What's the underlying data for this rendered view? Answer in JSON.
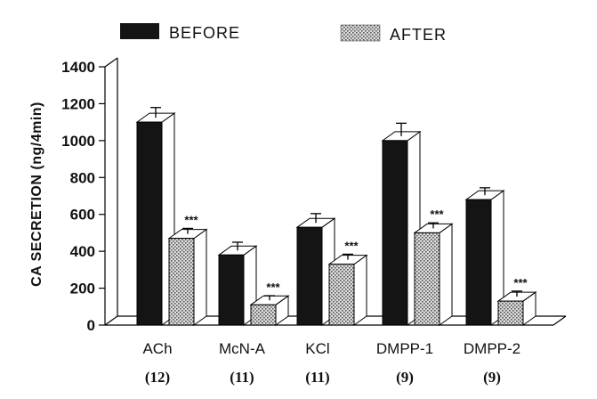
{
  "chart_data": {
    "type": "bar",
    "ylabel": "CA SECRETION (ng/4min)",
    "ylim": [
      0,
      1400
    ],
    "yticks": [
      0,
      200,
      400,
      600,
      800,
      1000,
      1200,
      1400
    ],
    "categories": [
      "ACh",
      "McN-A",
      "KCl",
      "DMPP-1",
      "DMPP-2"
    ],
    "counts": [
      "(12)",
      "(11)",
      "(11)",
      "(9)",
      "(9)"
    ],
    "series": [
      {
        "name": "BEFORE",
        "pattern": "solid-black",
        "values": [
          1100,
          380,
          530,
          1000,
          680
        ],
        "errors": [
          55,
          45,
          50,
          70,
          40
        ]
      },
      {
        "name": "AFTER",
        "pattern": "crosshatch",
        "values": [
          470,
          110,
          330,
          500,
          130
        ],
        "errors": [
          30,
          25,
          30,
          30,
          30
        ]
      }
    ],
    "annotations": [
      "***",
      "***",
      "***",
      "***",
      "***"
    ],
    "legend": "top",
    "grid": false
  },
  "colors": {
    "before": "#141414",
    "after_bg": "#dcdcdc",
    "after_dot": "#5a5a5a",
    "axis": "#000000"
  }
}
